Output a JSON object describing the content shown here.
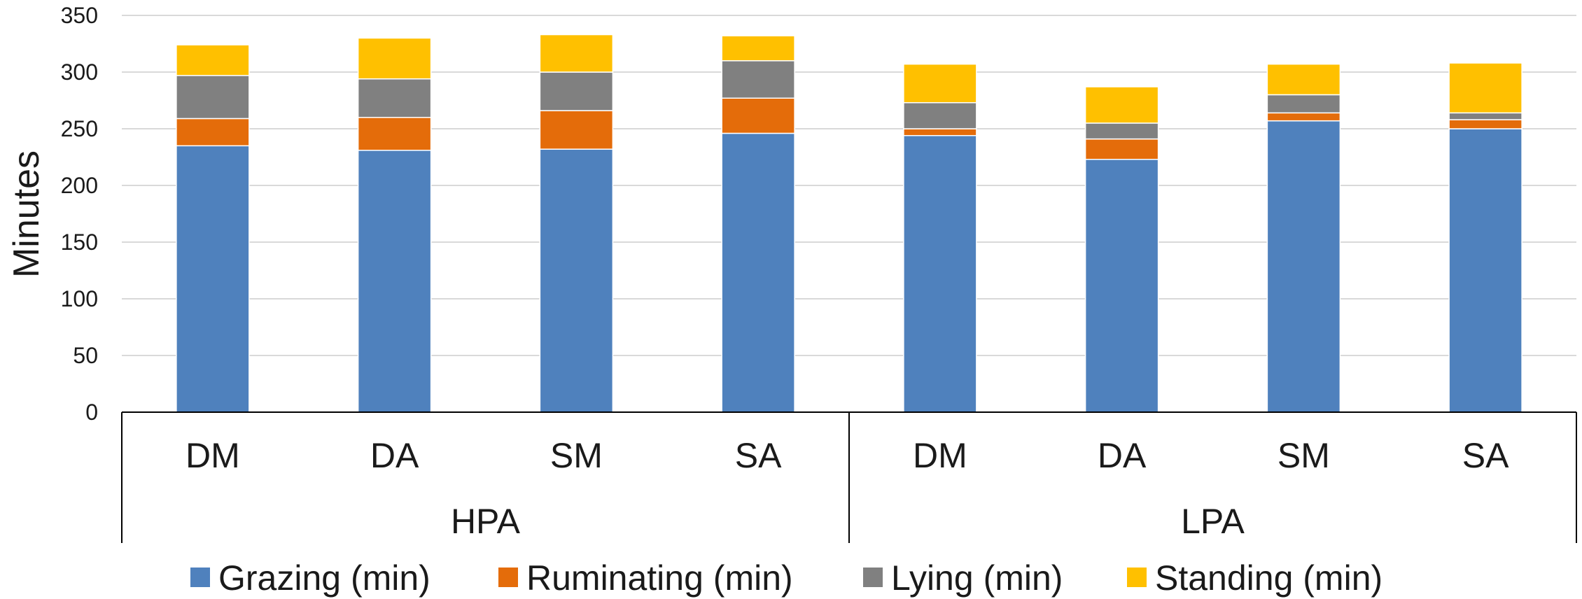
{
  "chart_data": {
    "type": "bar",
    "stacked": true,
    "title": "",
    "xlabel": "",
    "ylabel": "Minutes",
    "ylim": [
      0,
      350
    ],
    "yticks": [
      0,
      50,
      100,
      150,
      200,
      250,
      300,
      350
    ],
    "grid": true,
    "legend_position": "bottom",
    "categories": [
      "DM",
      "DA",
      "SM",
      "SA",
      "DM",
      "DA",
      "SM",
      "SA"
    ],
    "groups": [
      {
        "label": "HPA",
        "categories": [
          "DM",
          "DA",
          "SM",
          "SA"
        ]
      },
      {
        "label": "LPA",
        "categories": [
          "DM",
          "DA",
          "SM",
          "SA"
        ]
      }
    ],
    "series": [
      {
        "name": "Grazing (min)",
        "color": "#4F81BD",
        "values": [
          235,
          231,
          232,
          246,
          244,
          223,
          257,
          250
        ]
      },
      {
        "name": "Ruminating (min)",
        "color": "#E46C0A",
        "values": [
          24,
          29,
          34,
          31,
          6,
          18,
          7,
          8
        ]
      },
      {
        "name": "Lying (min)",
        "color": "#808080",
        "values": [
          38,
          34,
          34,
          33,
          23,
          14,
          16,
          6
        ]
      },
      {
        "name": "Standing (min)",
        "color": "#FFC000",
        "values": [
          27,
          36,
          33,
          22,
          34,
          32,
          27,
          44
        ]
      }
    ]
  }
}
